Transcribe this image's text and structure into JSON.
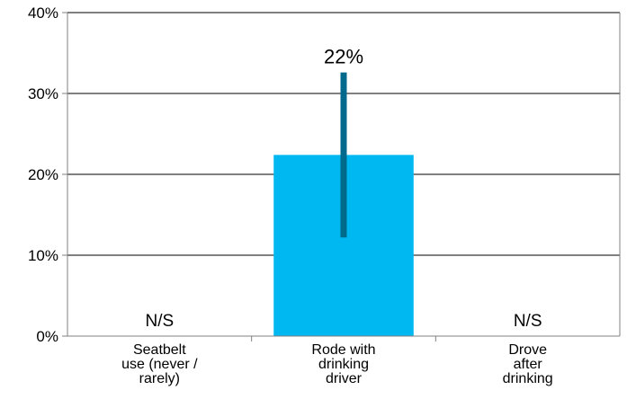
{
  "chart_data": {
    "type": "bar",
    "categories": [
      [
        "Seatbelt",
        "use (never /",
        "rarely)"
      ],
      [
        "Rode with",
        "drinking",
        "driver"
      ],
      [
        "Drove",
        "after",
        "drinking"
      ]
    ],
    "values": [
      null,
      22.4,
      null
    ],
    "value_labels": [
      "N/S",
      "22%",
      "N/S"
    ],
    "error_bars": [
      null,
      {
        "low": 12.2,
        "high": 32.6
      },
      null
    ],
    "y_ticks": [
      "0%",
      "10%",
      "20%",
      "30%",
      "40%"
    ],
    "y_tick_values": [
      0,
      10,
      20,
      30,
      40
    ],
    "ylim": [
      0,
      40
    ],
    "title": "",
    "xlabel": "",
    "ylabel": "",
    "grid": true,
    "bar_color": "#00b8f1",
    "error_bar_color": "#00698c",
    "axis_color": "#808080",
    "grid_color": "#000000"
  }
}
